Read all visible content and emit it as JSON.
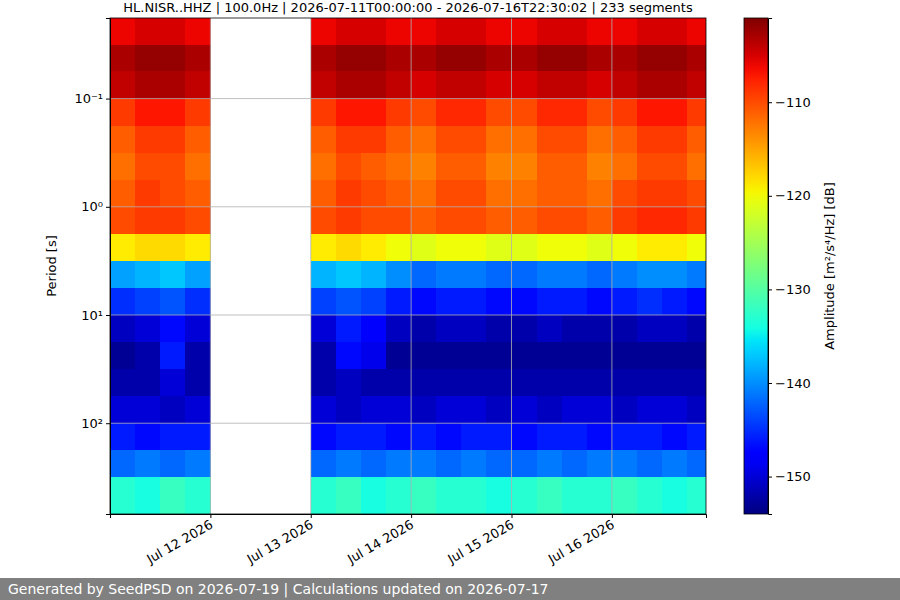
{
  "chart_data": {
    "type": "heatmap",
    "title": "HL.NISR..HHZ | 100.0Hz | 2026-07-11T00:00:00 - 2026-07-16T22:30:02 | 233 segments",
    "ylabel": "Period [s]",
    "colorbar_label": "Amplitude [m²/s⁴/Hz] [dB]",
    "footer": "Generated by SeedPSD on 2026-07-19 | Calculations updated on 2026-07-17",
    "log": "y",
    "grid": true,
    "xlim": [
      "2026-07-11T00:00:00",
      "2026-07-16T22:30:02"
    ],
    "ylim": [
      0.018,
      690
    ],
    "xticks": [
      {
        "value": "2026-07-12T00:00:00",
        "label": "Jul 12 2026"
      },
      {
        "value": "2026-07-13T00:00:00",
        "label": "Jul 13 2026"
      },
      {
        "value": "2026-07-14T00:00:00",
        "label": "Jul 14 2026"
      },
      {
        "value": "2026-07-15T00:00:00",
        "label": "Jul 15 2026"
      },
      {
        "value": "2026-07-16T00:00:00",
        "label": "Jul 16 2026"
      }
    ],
    "yticks": [
      {
        "value": 0.1,
        "label": "10⁻¹"
      },
      {
        "value": 1,
        "label": "10⁰"
      },
      {
        "value": 10,
        "label": "10¹"
      },
      {
        "value": 100,
        "label": "10²"
      }
    ],
    "colorbar_lim": [
      -154,
      -101
    ],
    "colorbar_ticks": [
      {
        "value": -150,
        "label": "−150"
      },
      {
        "value": -140,
        "label": "−140"
      },
      {
        "value": -130,
        "label": "−130"
      },
      {
        "value": -120,
        "label": "−120"
      },
      {
        "value": -110,
        "label": "−110"
      }
    ],
    "x_edges": [
      "2026-07-11T00:00:00",
      "2026-07-11T06:00:00",
      "2026-07-11T12:00:00",
      "2026-07-11T18:00:00",
      "2026-07-12T00:00:00",
      "2026-07-12T06:00:00",
      "2026-07-12T12:00:00",
      "2026-07-12T18:00:00",
      "2026-07-13T00:00:00",
      "2026-07-13T06:00:00",
      "2026-07-13T12:00:00",
      "2026-07-13T18:00:00",
      "2026-07-14T00:00:00",
      "2026-07-14T06:00:00",
      "2026-07-14T12:00:00",
      "2026-07-14T18:00:00",
      "2026-07-15T00:00:00",
      "2026-07-15T06:00:00",
      "2026-07-15T12:00:00",
      "2026-07-15T18:00:00",
      "2026-07-16T00:00:00",
      "2026-07-16T06:00:00",
      "2026-07-16T12:00:00",
      "2026-07-16T18:00:00",
      "2026-07-16T22:30:02"
    ],
    "y_edges": [
      0.018,
      0.032,
      0.056,
      0.1,
      0.178,
      0.316,
      0.562,
      1,
      1.78,
      3.16,
      5.62,
      10,
      17.8,
      31.6,
      56.2,
      100,
      178,
      316,
      690
    ],
    "z": [
      [
        -106,
        -105,
        -105,
        -106,
        null,
        null,
        null,
        null,
        -106,
        -105,
        -105,
        -106,
        -106,
        -105,
        -105,
        -106,
        -106,
        -105,
        -105,
        -106,
        -106,
        -105,
        -105,
        -106
      ],
      [
        -103,
        -102,
        -102,
        -103,
        null,
        null,
        null,
        null,
        -103,
        -102,
        -102,
        -103,
        -103,
        -102,
        -102,
        -103,
        -103,
        -102,
        -102,
        -103,
        -103,
        -102,
        -102,
        -103
      ],
      [
        -104,
        -103,
        -103,
        -104,
        null,
        null,
        null,
        null,
        -104,
        -103,
        -103,
        -104,
        -105,
        -104,
        -104,
        -105,
        -105,
        -104,
        -104,
        -105,
        -104,
        -103,
        -103,
        -104
      ],
      [
        -109,
        -107,
        -107,
        -109,
        null,
        null,
        null,
        null,
        -109,
        -107,
        -107,
        -109,
        -110,
        -108,
        -108,
        -110,
        -110,
        -108,
        -108,
        -110,
        -109,
        -107,
        -107,
        -109
      ],
      [
        -111,
        -109,
        -109,
        -111,
        null,
        null,
        null,
        null,
        -111,
        -109,
        -109,
        -111,
        -112,
        -110,
        -110,
        -112,
        -112,
        -110,
        -110,
        -112,
        -111,
        -109,
        -109,
        -111
      ],
      [
        -112,
        -110,
        -110,
        -112,
        null,
        null,
        null,
        null,
        -112,
        -110,
        -111,
        -112,
        -113,
        -111,
        -111,
        -113,
        -113,
        -111,
        -111,
        -113,
        -112,
        -110,
        -110,
        -112
      ],
      [
        -111,
        -109,
        -110,
        -111,
        null,
        null,
        null,
        null,
        -111,
        -109,
        -110,
        -111,
        -112,
        -110,
        -110,
        -112,
        -112,
        -111,
        -111,
        -112,
        -110,
        -109,
        -109,
        -110
      ],
      [
        -110,
        -109,
        -109,
        -110,
        null,
        null,
        null,
        null,
        -110,
        -109,
        -110,
        -110,
        -111,
        -110,
        -110,
        -111,
        -111,
        -110,
        -110,
        -111,
        -109,
        -108,
        -108,
        -109
      ],
      [
        -119,
        -118,
        -118,
        -119,
        null,
        null,
        null,
        null,
        -119,
        -118,
        -119,
        -120,
        -121,
        -120,
        -120,
        -121,
        -121,
        -120,
        -120,
        -121,
        -120,
        -119,
        -119,
        -120
      ],
      [
        -139,
        -138,
        -137,
        -139,
        null,
        null,
        null,
        null,
        -138,
        -137,
        -138,
        -140,
        -142,
        -141,
        -141,
        -142,
        -142,
        -141,
        -141,
        -142,
        -141,
        -140,
        -140,
        -141
      ],
      [
        -145,
        -144,
        -143,
        -145,
        null,
        null,
        null,
        null,
        -144,
        -143,
        -144,
        -146,
        -147,
        -146,
        -146,
        -147,
        -147,
        -146,
        -146,
        -147,
        -146,
        -145,
        -146,
        -147
      ],
      [
        -151,
        -150,
        -147,
        -150,
        null,
        null,
        null,
        null,
        -150,
        -146,
        -148,
        -151,
        -152,
        -151,
        -151,
        -152,
        -152,
        -151,
        -152,
        -152,
        -152,
        -151,
        -151,
        -152
      ],
      [
        -153,
        -152,
        -146,
        -152,
        null,
        null,
        null,
        null,
        -152,
        -147,
        -149,
        -153,
        -153,
        -153,
        -153,
        -153,
        -153,
        -153,
        -153,
        -153,
        -153,
        -153,
        -153,
        -153
      ],
      [
        -152,
        -152,
        -150,
        -152,
        null,
        null,
        null,
        null,
        -152,
        -151,
        -152,
        -152,
        -152,
        -152,
        -152,
        -152,
        -152,
        -152,
        -152,
        -152,
        -152,
        -152,
        -152,
        -152
      ],
      [
        -150,
        -150,
        -151,
        -150,
        null,
        null,
        null,
        null,
        -150,
        -151,
        -150,
        -150,
        -151,
        -150,
        -150,
        -151,
        -150,
        -151,
        -150,
        -150,
        -151,
        -150,
        -150,
        -151
      ],
      [
        -146,
        -147,
        -146,
        -146,
        null,
        null,
        null,
        null,
        -147,
        -146,
        -146,
        -147,
        -146,
        -147,
        -146,
        -146,
        -147,
        -146,
        -146,
        -147,
        -146,
        -146,
        -147,
        -146
      ],
      [
        -142,
        -141,
        -142,
        -141,
        null,
        null,
        null,
        null,
        -142,
        -141,
        -142,
        -141,
        -141,
        -142,
        -141,
        -142,
        -142,
        -141,
        -142,
        -141,
        -141,
        -142,
        -141,
        -142
      ],
      [
        -133,
        -134,
        -132,
        -133,
        null,
        null,
        null,
        null,
        -133,
        -132,
        -134,
        -133,
        -132,
        -133,
        -133,
        -134,
        -133,
        -132,
        -133,
        -133,
        -132,
        -133,
        -134,
        -133
      ]
    ]
  }
}
